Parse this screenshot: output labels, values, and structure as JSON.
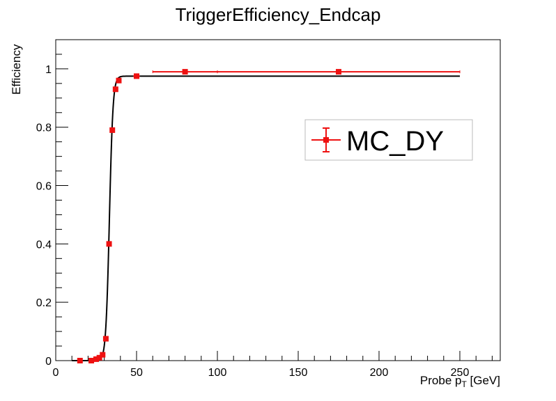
{
  "chart_data": {
    "type": "scatter",
    "title": "TriggerEfficiency_Endcap",
    "xlabel_prefix": "Probe p",
    "xlabel_sub": "T",
    "xlabel_suffix": " [GeV]",
    "ylabel": "Efficiency",
    "xlim": [
      0,
      275
    ],
    "ylim": [
      0,
      1.1
    ],
    "xticks": [
      0,
      50,
      100,
      150,
      200,
      250
    ],
    "yticks": [
      0,
      0.2,
      0.4,
      0.6,
      0.8,
      1
    ],
    "ytick_labels": [
      "0",
      "0.2",
      "0.4",
      "0.6",
      "0.8",
      "1"
    ],
    "grid": false,
    "legend_position": "top-right",
    "series": [
      {
        "name": "MC_DY",
        "color": "#ee1111",
        "marker": "square",
        "points": [
          {
            "x": 15,
            "y": 0.0,
            "xerr": 1.0
          },
          {
            "x": 22,
            "y": 0.0,
            "xerr": 1.0
          },
          {
            "x": 25,
            "y": 0.005,
            "xerr": 1.0
          },
          {
            "x": 27,
            "y": 0.01,
            "xerr": 1.0
          },
          {
            "x": 29,
            "y": 0.02,
            "xerr": 1.0
          },
          {
            "x": 31,
            "y": 0.075,
            "xerr": 1.0
          },
          {
            "x": 33,
            "y": 0.4,
            "xerr": 1.0
          },
          {
            "x": 35,
            "y": 0.79,
            "xerr": 1.0
          },
          {
            "x": 37,
            "y": 0.93,
            "xerr": 1.0
          },
          {
            "x": 39,
            "y": 0.96,
            "xerr": 1.0
          },
          {
            "x": 50,
            "y": 0.975,
            "xerr": 2.0
          },
          {
            "x": 80,
            "y": 0.99,
            "xerr": 20.0
          },
          {
            "x": 175,
            "y": 0.99,
            "xerr": 75.0
          }
        ]
      }
    ],
    "fit": {
      "color": "#000000",
      "function": "sigmoid",
      "plateau": 0.975,
      "midpoint": 33.2,
      "width": 1.1,
      "x_range": [
        10,
        250
      ]
    }
  }
}
